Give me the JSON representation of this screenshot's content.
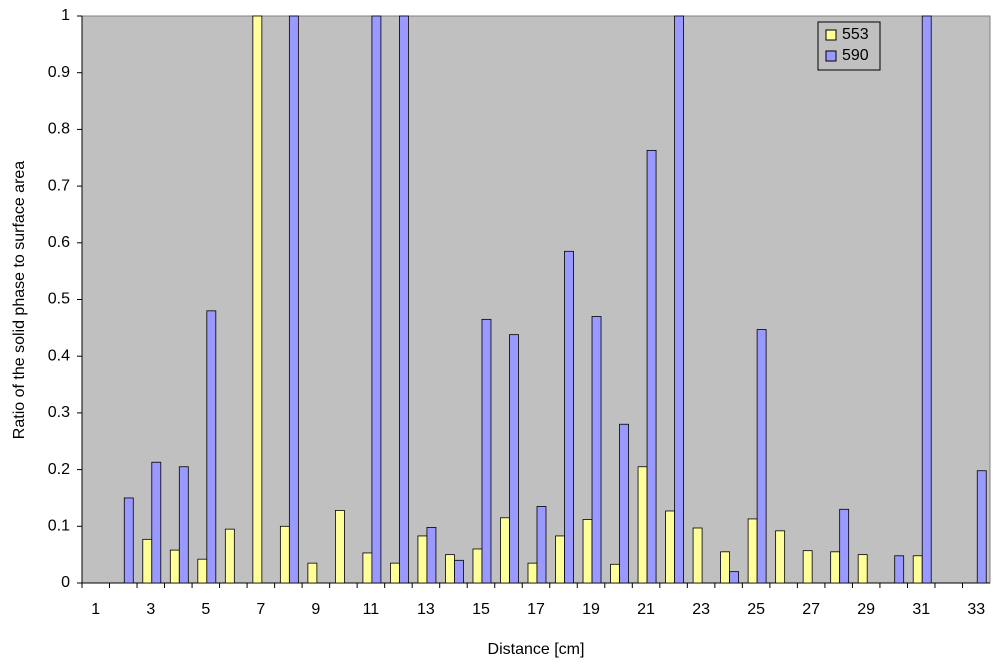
{
  "chart_data": {
    "type": "bar",
    "x_label": "Distance [cm]",
    "y_label": "Ratio of the solid phase to surface area",
    "categories": [
      1,
      null,
      3,
      null,
      5,
      null,
      7,
      null,
      9,
      null,
      11,
      null,
      13,
      null,
      15,
      null,
      17,
      null,
      19,
      null,
      21,
      null,
      23,
      null,
      25,
      null,
      27,
      null,
      29,
      null,
      31,
      null,
      33
    ],
    "series": [
      {
        "name": "553",
        "color": "#ffff99",
        "values": [
          null,
          null,
          0.077,
          0.058,
          0.042,
          0.095,
          1.0,
          0.1,
          0.035,
          0.128,
          0.053,
          0.035,
          0.083,
          0.05,
          0.06,
          0.115,
          0.035,
          0.083,
          0.112,
          0.033,
          0.205,
          0.127,
          0.097,
          0.055,
          0.113,
          0.092,
          0.057,
          0.055,
          0.05,
          null,
          0.048,
          null,
          null
        ]
      },
      {
        "name": "590",
        "color": "#9999ff",
        "values": [
          null,
          0.15,
          0.213,
          0.205,
          0.48,
          null,
          null,
          1.0,
          null,
          null,
          1.0,
          1.0,
          0.098,
          0.04,
          0.465,
          0.438,
          0.135,
          0.585,
          0.47,
          0.28,
          0.763,
          1.0,
          null,
          0.02,
          0.447,
          null,
          null,
          0.13,
          null,
          0.048,
          1.0,
          null,
          0.198
        ]
      }
    ],
    "ylim": [
      0,
      1
    ],
    "yticks": [
      0,
      0.1,
      0.2,
      0.3,
      0.4,
      0.5,
      0.6,
      0.7,
      0.8,
      0.9,
      1
    ],
    "plot_background": "#c0c0c0",
    "legend": "top-right"
  }
}
